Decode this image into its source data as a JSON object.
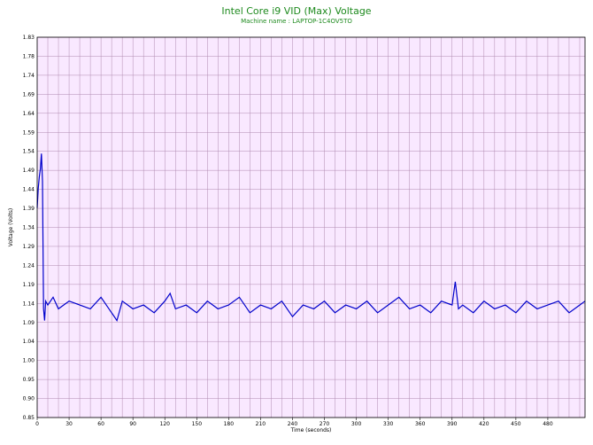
{
  "chart_data": {
    "type": "line",
    "title": "Intel Core i9 VID (Max) Voltage",
    "subtitle": "Machine name : LAPTOP-1C4OV5TO",
    "xlabel": "Time (seconds)",
    "ylabel": "Voltage (Volts)",
    "xlim": [
      0,
      515
    ],
    "ylim": [
      0.85,
      1.83
    ],
    "x_ticks": [
      0,
      30,
      60,
      90,
      120,
      150,
      180,
      210,
      240,
      270,
      300,
      330,
      360,
      390,
      420,
      450,
      480
    ],
    "y_ticks": [
      "0.85",
      "0.90",
      "0.95",
      "1.00",
      "1.04",
      "1.09",
      "1.14",
      "1.19",
      "1.24",
      "1.29",
      "1.34",
      "1.39",
      "1.44",
      "1.49",
      "1.54",
      "1.59",
      "1.64",
      "1.69",
      "1.74",
      "1.78",
      "1.83"
    ],
    "grid": true,
    "line_color": "#0000cc",
    "plot_background": "#f9e8ff",
    "grid_color": "#b08ab0",
    "series": [
      {
        "name": "",
        "x": [
          0,
          1,
          2,
          3,
          4,
          5,
          6,
          7,
          8,
          10,
          15,
          20,
          30,
          40,
          50,
          60,
          70,
          75,
          80,
          90,
          100,
          110,
          120,
          125,
          130,
          140,
          150,
          160,
          170,
          180,
          190,
          200,
          210,
          220,
          230,
          240,
          250,
          260,
          270,
          280,
          290,
          300,
          310,
          320,
          330,
          340,
          350,
          360,
          370,
          380,
          390,
          393,
          396,
          400,
          410,
          420,
          430,
          440,
          450,
          460,
          470,
          480,
          490,
          500,
          510,
          515
        ],
        "y": [
          1.39,
          1.44,
          1.47,
          1.49,
          1.53,
          1.46,
          1.13,
          1.1,
          1.15,
          1.14,
          1.16,
          1.13,
          1.15,
          1.14,
          1.13,
          1.16,
          1.12,
          1.1,
          1.15,
          1.13,
          1.14,
          1.12,
          1.15,
          1.17,
          1.13,
          1.14,
          1.12,
          1.15,
          1.13,
          1.14,
          1.16,
          1.12,
          1.14,
          1.13,
          1.15,
          1.11,
          1.14,
          1.13,
          1.15,
          1.12,
          1.14,
          1.13,
          1.15,
          1.12,
          1.14,
          1.16,
          1.13,
          1.14,
          1.12,
          1.15,
          1.14,
          1.2,
          1.13,
          1.14,
          1.12,
          1.15,
          1.13,
          1.14,
          1.12,
          1.15,
          1.13,
          1.14,
          1.15,
          1.12,
          1.14,
          1.15
        ]
      }
    ]
  }
}
